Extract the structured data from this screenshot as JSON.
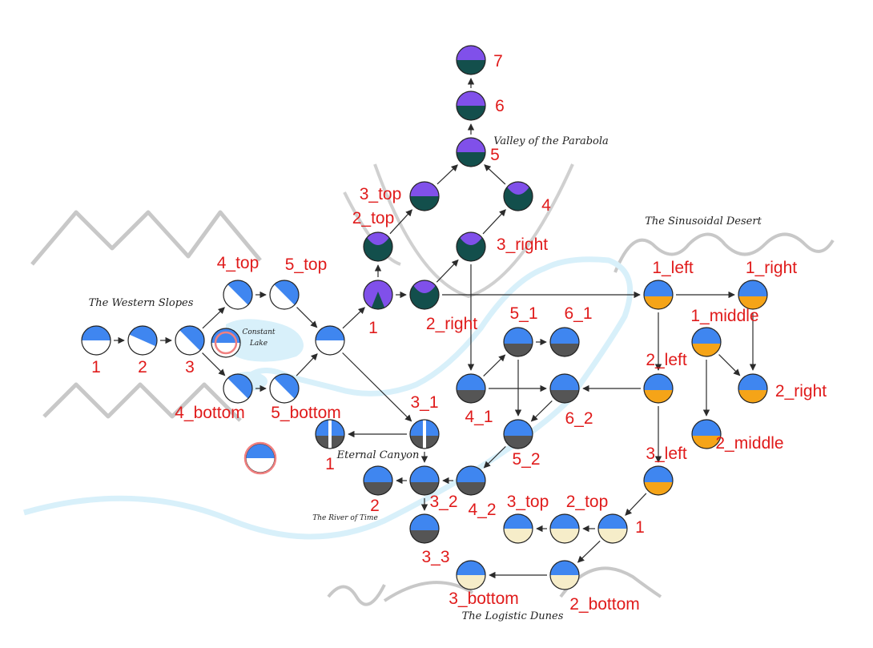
{
  "regions": {
    "western_slopes": "The Western Slopes",
    "constant_lake": [
      "Constant",
      "Lake"
    ],
    "valley": "Valley of the Parabola",
    "desert": "The Sinusoidal Desert",
    "canyon": "Eternal Canyon",
    "river": "The River of Time",
    "dunes": "The Logistic Dunes"
  },
  "colors": {
    "sky_blue": "#3f86f0",
    "sky_purple": "#8050ea",
    "teal": "#134f4c",
    "gray": "#555555",
    "orange": "#f5a418",
    "sand": "#f6edc9",
    "lake": "#d8f0fa",
    "river": "#d8f0fa",
    "mountains": "#c8c8c8",
    "label_red": "#e01b1b",
    "highlight_ring": "#f08080"
  },
  "nodes": [
    {
      "id": "ws1",
      "label": "1",
      "style": "white"
    },
    {
      "id": "ws2",
      "label": "2",
      "style": "white"
    },
    {
      "id": "ws3",
      "label": "3",
      "style": "white"
    },
    {
      "id": "ws4t",
      "label": "4_top",
      "style": "white"
    },
    {
      "id": "ws5t",
      "label": "5_top",
      "style": "white"
    },
    {
      "id": "ws4b",
      "label": "4_bottom",
      "style": "white"
    },
    {
      "id": "ws5b",
      "label": "5_bottom",
      "style": "white"
    },
    {
      "id": "wsm",
      "label": "",
      "style": "white"
    },
    {
      "id": "lake_small",
      "label": "",
      "style": "white"
    },
    {
      "id": "legend_sample",
      "label": "",
      "style": "white"
    },
    {
      "id": "v1",
      "label": "1",
      "style": "valley"
    },
    {
      "id": "v2t",
      "label": "2_top",
      "style": "teal"
    },
    {
      "id": "v3t",
      "label": "3_top",
      "style": "teal"
    },
    {
      "id": "v2r",
      "label": "2_right",
      "style": "teal"
    },
    {
      "id": "v3r",
      "label": "3_right",
      "style": "teal"
    },
    {
      "id": "v4",
      "label": "4",
      "style": "teal"
    },
    {
      "id": "v5",
      "label": "5",
      "style": "teal"
    },
    {
      "id": "v6",
      "label": "6",
      "style": "teal"
    },
    {
      "id": "v7",
      "label": "7",
      "style": "teal"
    },
    {
      "id": "d1l",
      "label": "1_left",
      "style": "orange"
    },
    {
      "id": "d1r",
      "label": "1_right",
      "style": "orange"
    },
    {
      "id": "d1m",
      "label": "1_middle",
      "style": "orange"
    },
    {
      "id": "d2l",
      "label": "2_left",
      "style": "orange"
    },
    {
      "id": "d2r",
      "label": "2_right",
      "style": "orange"
    },
    {
      "id": "d2m",
      "label": "2_middle",
      "style": "orange"
    },
    {
      "id": "d3l",
      "label": "3_left",
      "style": "orange"
    },
    {
      "id": "c41",
      "label": "4_1",
      "style": "gray"
    },
    {
      "id": "c51",
      "label": "5_1",
      "style": "gray"
    },
    {
      "id": "c61",
      "label": "6_1",
      "style": "gray"
    },
    {
      "id": "c62",
      "label": "6_2",
      "style": "gray"
    },
    {
      "id": "c52",
      "label": "5_2",
      "style": "gray"
    },
    {
      "id": "c42",
      "label": "4_2",
      "style": "gray"
    },
    {
      "id": "c31",
      "label": "3_1",
      "style": "gray"
    },
    {
      "id": "c1",
      "label": "1",
      "style": "gray"
    },
    {
      "id": "c32",
      "label": "3_2",
      "style": "gray"
    },
    {
      "id": "c2",
      "label": "2",
      "style": "gray"
    },
    {
      "id": "c33",
      "label": "3_3",
      "style": "gray"
    },
    {
      "id": "l1",
      "label": "1",
      "style": "sand"
    },
    {
      "id": "l2t",
      "label": "2_top",
      "style": "sand"
    },
    {
      "id": "l3t",
      "label": "3_top",
      "style": "sand"
    },
    {
      "id": "l2b",
      "label": "2_bottom",
      "style": "sand"
    },
    {
      "id": "l3b",
      "label": "3_bottom",
      "style": "sand"
    }
  ],
  "edges": [
    [
      "ws1",
      "ws2"
    ],
    [
      "ws2",
      "ws3"
    ],
    [
      "ws3",
      "ws4t"
    ],
    [
      "ws3",
      "ws4b"
    ],
    [
      "ws4t",
      "ws5t"
    ],
    [
      "ws4b",
      "ws5b"
    ],
    [
      "ws5t",
      "wsm"
    ],
    [
      "ws5b",
      "wsm"
    ],
    [
      "wsm",
      "v1"
    ],
    [
      "wsm",
      "c31"
    ],
    [
      "v1",
      "v2t"
    ],
    [
      "v1",
      "v2r"
    ],
    [
      "v2t",
      "v3t"
    ],
    [
      "v2r",
      "v3r"
    ],
    [
      "v3t",
      "v5"
    ],
    [
      "v3r",
      "v4"
    ],
    [
      "v4",
      "v5"
    ],
    [
      "v5",
      "v6"
    ],
    [
      "v6",
      "v7"
    ],
    [
      "v2r",
      "d1l"
    ],
    [
      "v3r",
      "c41"
    ],
    [
      "d1l",
      "d1r"
    ],
    [
      "d1l",
      "d2l"
    ],
    [
      "d1r",
      "d2r"
    ],
    [
      "d1m",
      "d2r"
    ],
    [
      "d1m",
      "d2m"
    ],
    [
      "d2l",
      "c62"
    ],
    [
      "d2l",
      "d3l"
    ],
    [
      "d3l",
      "l1"
    ],
    [
      "c41",
      "c51"
    ],
    [
      "c51",
      "c61"
    ],
    [
      "c41",
      "c62"
    ],
    [
      "c51",
      "c52"
    ],
    [
      "c62",
      "c52"
    ],
    [
      "c52",
      "c42"
    ],
    [
      "c42",
      "c32"
    ],
    [
      "c31",
      "c1"
    ],
    [
      "c31",
      "c32"
    ],
    [
      "c32",
      "c2"
    ],
    [
      "c32",
      "c33"
    ],
    [
      "l1",
      "l2t"
    ],
    [
      "l2t",
      "l3t"
    ],
    [
      "l1",
      "l2b"
    ],
    [
      "l2b",
      "l3b"
    ]
  ]
}
